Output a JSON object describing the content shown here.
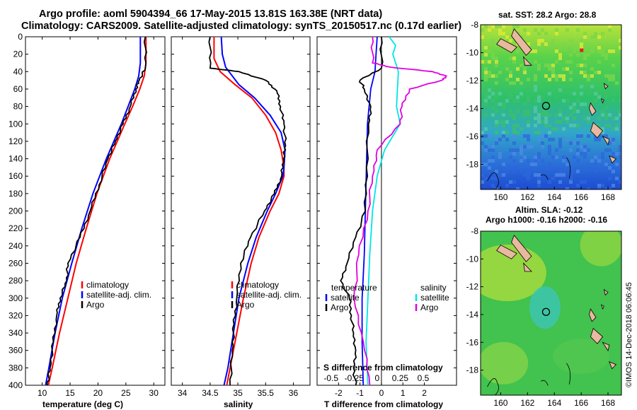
{
  "header": {
    "line1": "Argo profile: aoml 5904394_66 17-May-2015 13.81S 163.38E (NRT data)",
    "line2": "Climatology: CARS2009. Satellite-adjusted climatology: synTS_20150517.nc (0.17d earlier)"
  },
  "colors": {
    "climatology": "#ff0000",
    "satellite": "#0000ff",
    "argo": "#000000",
    "s_sat": "#00e5e5",
    "s_clim": "#e000e0"
  },
  "chart_data": [
    {
      "type": "line",
      "title": "",
      "xlabel": "temperature (deg C)",
      "ylabel": "",
      "xlim": [
        7,
        32
      ],
      "ylim": [
        400,
        0
      ],
      "xticks": [
        10,
        15,
        20,
        25,
        30
      ],
      "yticks": [
        0,
        20,
        40,
        60,
        80,
        100,
        120,
        140,
        160,
        180,
        200,
        220,
        240,
        260,
        280,
        300,
        320,
        340,
        360,
        380,
        400
      ],
      "legend": [
        "climatology",
        "satellite-adj. clim.",
        "Argo"
      ],
      "series": [
        {
          "name": "climatology",
          "depth": [
            0,
            30,
            45,
            60,
            80,
            100,
            140,
            180,
            220,
            260,
            300,
            340,
            380,
            400
          ],
          "values": [
            28.6,
            28.6,
            28.3,
            27.5,
            26.2,
            24.8,
            22.1,
            19.8,
            17.9,
            16.1,
            14.6,
            13.1,
            11.8,
            11.1
          ]
        },
        {
          "name": "satellite-adj. clim.",
          "depth": [
            0,
            30,
            45,
            60,
            80,
            100,
            140,
            180,
            220,
            260,
            300,
            340,
            380,
            400
          ],
          "values": [
            27.6,
            27.6,
            27.3,
            26.6,
            25.4,
            24.2,
            21.5,
            19.1,
            17.1,
            15.3,
            13.6,
            12.3,
            11.2,
            10.6
          ]
        },
        {
          "name": "Argo",
          "depth": [
            0,
            36,
            50,
            60,
            80,
            100,
            120,
            140,
            170,
            200,
            230,
            260,
            280,
            300,
            320,
            350,
            380,
            400
          ],
          "values": [
            28.5,
            28.5,
            27.4,
            26.8,
            25.8,
            24.5,
            23.1,
            21.8,
            20.2,
            18.6,
            16.8,
            14.6,
            14.4,
            13.2,
            12.6,
            12.0,
            11.4,
            10.9
          ]
        }
      ]
    },
    {
      "type": "line",
      "xlabel": "salinity",
      "xlim": [
        33.8,
        36.3
      ],
      "ylim": [
        400,
        0
      ],
      "xticks": [
        34,
        34.5,
        35,
        35.5,
        36
      ],
      "yticks": [
        0,
        20,
        40,
        60,
        80,
        100,
        120,
        140,
        160,
        180,
        200,
        220,
        240,
        260,
        280,
        300,
        320,
        340,
        360,
        380,
        400
      ],
      "legend": [
        "climatology",
        "satellite-adj. clim.",
        "Argo"
      ],
      "series": [
        {
          "name": "climatology",
          "depth": [
            0,
            25,
            40,
            55,
            70,
            90,
            110,
            130,
            150,
            160,
            180,
            200,
            230,
            260,
            300,
            340,
            380,
            400
          ],
          "values": [
            34.57,
            34.57,
            34.68,
            34.95,
            35.25,
            35.5,
            35.68,
            35.78,
            35.83,
            35.83,
            35.74,
            35.58,
            35.38,
            35.24,
            35.1,
            34.98,
            34.86,
            34.8
          ]
        },
        {
          "name": "satellite-adj. clim.",
          "depth": [
            0,
            20,
            35,
            55,
            70,
            90,
            110,
            130,
            150,
            160,
            180,
            200,
            230,
            260,
            300,
            340,
            380,
            400
          ],
          "values": [
            34.7,
            34.72,
            34.78,
            35.02,
            35.3,
            35.58,
            35.78,
            35.85,
            35.83,
            35.81,
            35.68,
            35.53,
            35.33,
            35.18,
            35.02,
            34.92,
            34.82,
            34.75
          ]
        },
        {
          "name": "Argo",
          "depth": [
            0,
            36,
            40,
            50,
            62,
            80,
            100,
            125,
            140,
            160,
            180,
            200,
            230,
            260,
            300,
            330,
            360,
            400
          ],
          "values": [
            34.5,
            34.5,
            35.02,
            35.5,
            35.7,
            35.77,
            35.83,
            35.86,
            35.82,
            35.79,
            35.66,
            35.48,
            35.23,
            35.05,
            34.98,
            34.93,
            34.9,
            34.86
          ]
        }
      ]
    },
    {
      "type": "line",
      "xlabel": "T difference from climatology",
      "xlabel2": "S difference from climatology",
      "xlim": [
        -3,
        3.5
      ],
      "ylim": [
        400,
        0
      ],
      "xticks": [
        -2,
        -1,
        0,
        1,
        2
      ],
      "xticks2": [
        -0.5,
        -0.25,
        0,
        0.25,
        0.5
      ],
      "yticks": [
        0,
        20,
        40,
        60,
        80,
        100,
        120,
        140,
        160,
        180,
        200,
        220,
        240,
        260,
        280,
        300,
        320,
        340,
        360,
        380,
        400
      ],
      "legend_left_title": "temperature",
      "legend_right_title": "salinity",
      "legend": [
        "satellite",
        "Argo",
        "satellite",
        "Argo"
      ],
      "series": [
        {
          "name": "T satellite",
          "depth": [
            0,
            40,
            60,
            100,
            150,
            200,
            250,
            300,
            350,
            400
          ],
          "values": [
            -0.2,
            -0.3,
            -0.5,
            -0.65,
            -0.7,
            -0.75,
            -0.8,
            -0.9,
            -0.9,
            -0.85
          ]
        },
        {
          "name": "T Argo",
          "depth": [
            0,
            36,
            50,
            60,
            80,
            100,
            150,
            200,
            230,
            260,
            280,
            300,
            320,
            340,
            360,
            380,
            400
          ],
          "values": [
            0,
            0,
            -1.0,
            -0.8,
            -0.5,
            -0.6,
            -0.7,
            -0.75,
            -1.2,
            -1.6,
            -1.9,
            -1.5,
            -1.4,
            -1.3,
            -1.2,
            -1.3,
            -1.2
          ]
        },
        {
          "name": "S satellite",
          "depth": [
            0,
            10,
            20,
            30,
            40,
            60,
            80,
            100,
            130,
            160,
            200,
            250,
            300,
            350,
            400
          ],
          "values": [
            0.13,
            0.2,
            0.17,
            0.2,
            0.23,
            0.22,
            0.21,
            0.25,
            0.08,
            0.0,
            -0.05,
            -0.08,
            -0.1,
            -0.12,
            -0.1
          ]
        },
        {
          "name": "S Argo",
          "depth": [
            0,
            30,
            35,
            40,
            45,
            50,
            60,
            80,
            100,
            130,
            160,
            200,
            250,
            300,
            350,
            400
          ],
          "values": [
            -0.05,
            -0.05,
            0.15,
            0.6,
            0.75,
            0.7,
            0.35,
            0.27,
            0.25,
            0.0,
            -0.05,
            -0.1,
            -0.2,
            -0.25,
            -0.15,
            -0.08
          ]
        }
      ]
    },
    {
      "type": "heatmap",
      "title": "sat. SST: 28.2 Argo: 28.8",
      "xlim": [
        158.5,
        169
      ],
      "ylim": [
        -19.8,
        -8
      ],
      "xticks": [
        160,
        162,
        164,
        166,
        168
      ],
      "yticks": [
        -8,
        -10,
        -12,
        -14,
        -16,
        -18
      ],
      "marker": [
        163.38,
        -13.81
      ]
    },
    {
      "type": "heatmap",
      "title_line1": "Altim. SLA: -0.12",
      "title_line2": "Argo h1000: -0.16 h2000: -0.16",
      "xlim": [
        158.5,
        169
      ],
      "ylim": [
        -19.8,
        -8
      ],
      "xticks": [
        160,
        162,
        164,
        166,
        168
      ],
      "yticks": [
        -8,
        -10,
        -12,
        -14,
        -16,
        -18
      ],
      "marker": [
        163.38,
        -13.81
      ]
    }
  ],
  "footer": {
    "credit": "©IMOS 14-Dec-2018 06:06:45"
  }
}
